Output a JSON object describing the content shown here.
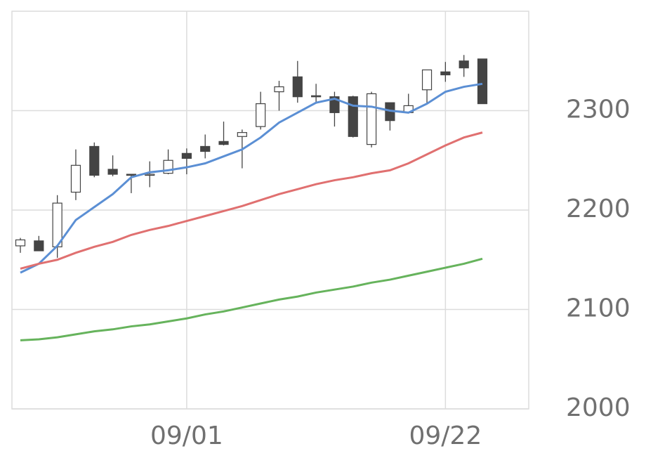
{
  "chart_data": {
    "type": "candlestick",
    "categories": [
      null,
      null,
      null,
      null,
      null,
      null,
      null,
      null,
      null,
      "09/01",
      null,
      null,
      null,
      null,
      null,
      null,
      null,
      null,
      null,
      null,
      null,
      null,
      null,
      "09/22",
      null,
      null
    ],
    "open": [
      2164,
      2169,
      2163,
      2218,
      2264,
      2241,
      2236,
      2235,
      2237,
      2257,
      2264,
      2269,
      2274,
      2284,
      2319,
      2334,
      2315,
      2314,
      2314,
      2266,
      2308,
      2298,
      2321,
      2339,
      2350,
      2352
    ],
    "high": [
      2172,
      2174,
      2215,
      2261,
      2268,
      2255,
      2236,
      2249,
      2261,
      2262,
      2276,
      2289,
      2281,
      2319,
      2330,
      2350,
      2327,
      2319,
      2315,
      2319,
      2308,
      2317,
      2341,
      2349,
      2356,
      2352
    ],
    "low": [
      2157,
      2159,
      2152,
      2210,
      2233,
      2234,
      2217,
      2223,
      2236,
      2236,
      2252,
      2265,
      2242,
      2281,
      2300,
      2308,
      2307,
      2284,
      2273,
      2263,
      2280,
      2298,
      2307,
      2329,
      2334,
      2307
    ],
    "close": [
      2170,
      2159,
      2207,
      2245,
      2235,
      2236,
      2235,
      2236,
      2250,
      2252,
      2259,
      2266,
      2278,
      2307,
      2324,
      2314,
      2314,
      2298,
      2274,
      2317,
      2290,
      2305,
      2341,
      2336,
      2343,
      2307
    ],
    "up_color": "#ffffff",
    "down_color": "#444444",
    "series": [
      {
        "color": "#5b8fd4",
        "values": [
          2137,
          2146,
          2164,
          2190,
          2203,
          2216,
          2233,
          2238,
          2240,
          2243,
          2247,
          2254,
          2261,
          2273,
          2288,
          2298,
          2308,
          2312,
          2305,
          2304,
          2300,
          2298,
          2307,
          2319,
          2324,
          2327
        ]
      },
      {
        "color": "#e07070",
        "values": [
          2141,
          2146,
          2150,
          2157,
          2163,
          2168,
          2175,
          2180,
          2184,
          2189,
          2194,
          2199,
          2204,
          2210,
          2216,
          2221,
          2226,
          2230,
          2233,
          2237,
          2240,
          2247,
          2256,
          2265,
          2273,
          2278
        ]
      },
      {
        "color": "#66b35c",
        "values": [
          2069,
          2070,
          2072,
          2075,
          2078,
          2080,
          2083,
          2085,
          2088,
          2091,
          2095,
          2098,
          2102,
          2106,
          2110,
          2113,
          2117,
          2120,
          2123,
          2127,
          2130,
          2134,
          2138,
          2142,
          2146,
          2151
        ]
      }
    ],
    "ylim": [
      2000,
      2400
    ],
    "yticks": [
      2000,
      2100,
      2200,
      2300
    ],
    "grid": true
  }
}
